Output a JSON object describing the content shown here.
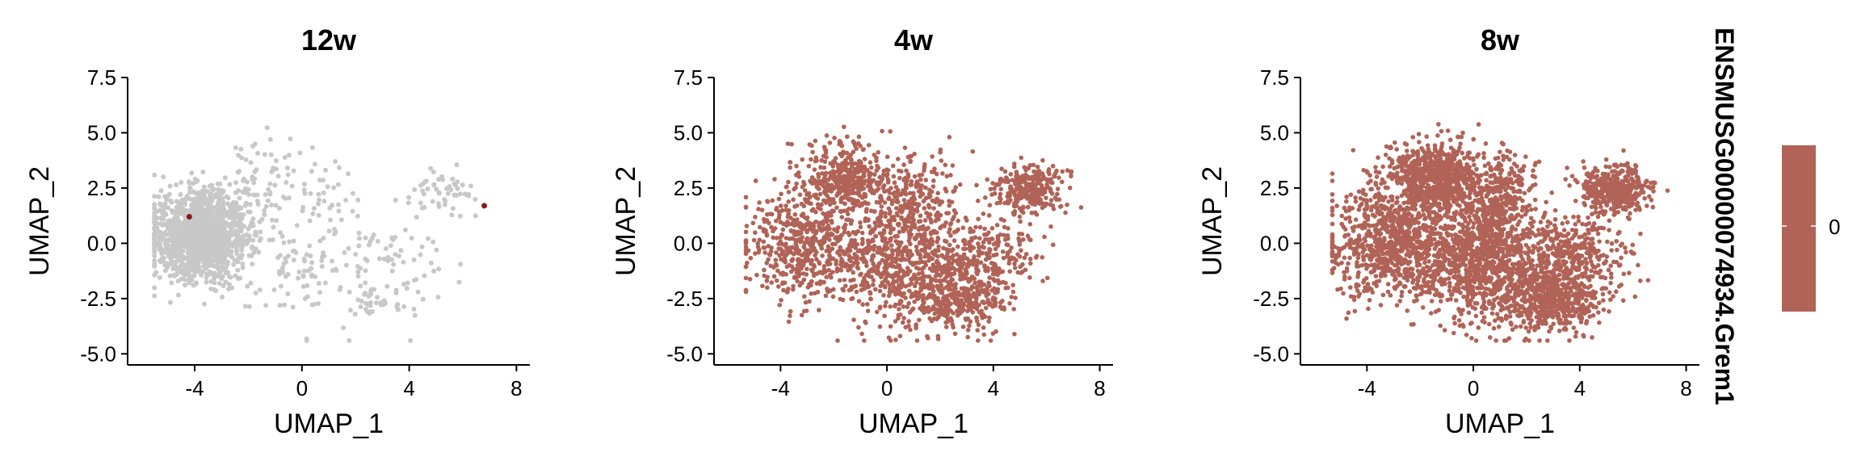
{
  "chart_data": [
    {
      "type": "scatter",
      "title": "12w",
      "xlabel": "UMAP_1",
      "ylabel": "UMAP_2",
      "xlim": [
        -6.5,
        8.5
      ],
      "ylim": [
        -5.5,
        7.5
      ],
      "xticks": [
        "-4",
        "0",
        "4",
        "8"
      ],
      "yticks": [
        "-5.0",
        "-2.5",
        "0.0",
        "2.5",
        "5.0",
        "7.5"
      ],
      "background_color": "#c8c8c8",
      "highlight_color": "#8b1a1a",
      "expressing_cells": [
        {
          "x": -4.2,
          "y": 1.2
        },
        {
          "x": 6.8,
          "y": 1.7
        }
      ]
    },
    {
      "type": "scatter",
      "title": "4w",
      "xlabel": "UMAP_1",
      "ylabel": "UMAP_2",
      "xlim": [
        -6.5,
        8.5
      ],
      "ylim": [
        -5.5,
        7.5
      ],
      "xticks": [
        "-4",
        "0",
        "4",
        "8"
      ],
      "yticks": [
        "-5.0",
        "-2.5",
        "0.0",
        "2.5",
        "5.0",
        "7.5"
      ],
      "point_color": "#b06356"
    },
    {
      "type": "scatter",
      "title": "8w",
      "xlabel": "UMAP_1",
      "ylabel": "UMAP_2",
      "xlim": [
        -6.5,
        8.5
      ],
      "ylim": [
        -5.5,
        7.5
      ],
      "xticks": [
        "-4",
        "0",
        "4",
        "8"
      ],
      "yticks": [
        "-5.0",
        "-2.5",
        "0.0",
        "2.5",
        "5.0",
        "7.5"
      ],
      "point_color": "#b06356"
    }
  ],
  "legend": {
    "title": "ENSMUSG00000074934.Grem1",
    "color": "#b06356",
    "tick_label": "0"
  }
}
